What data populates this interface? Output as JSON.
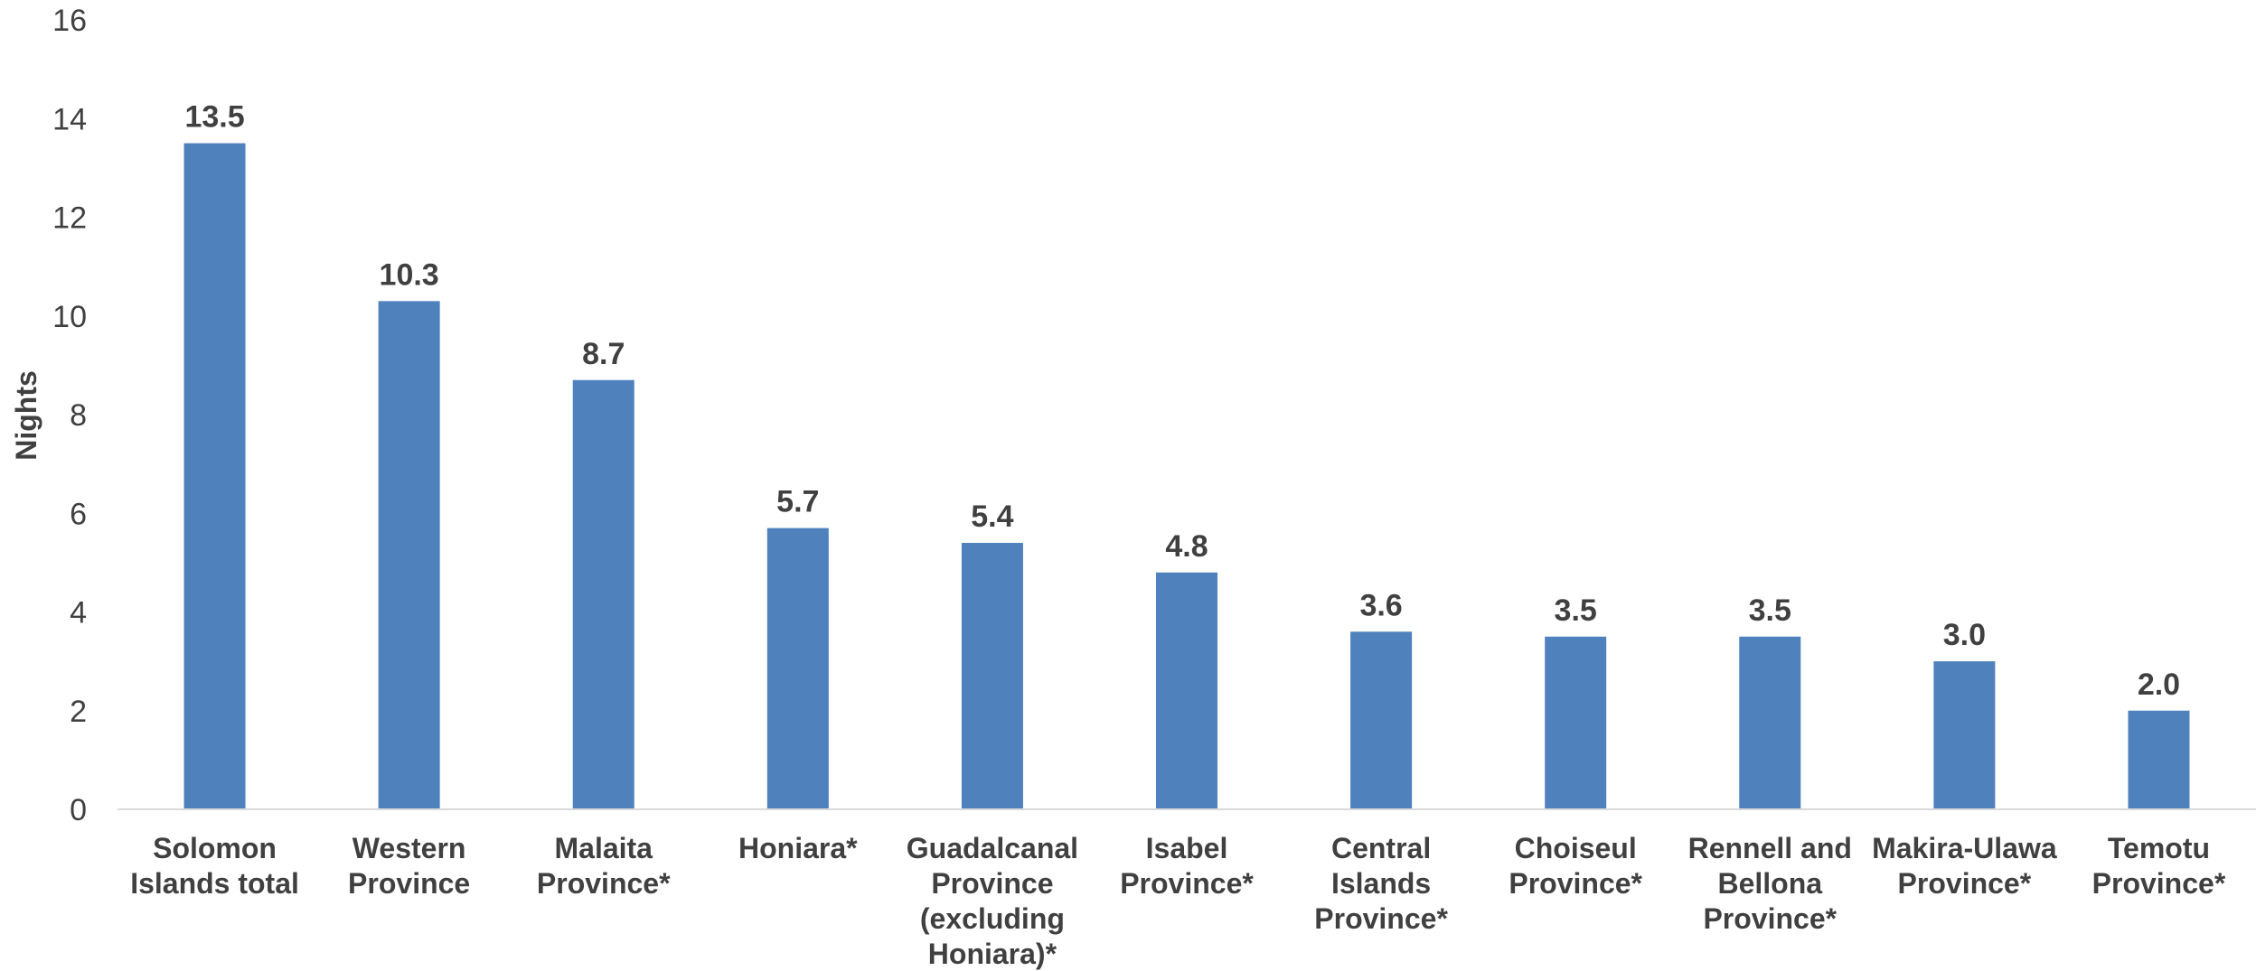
{
  "chart_data": {
    "type": "bar",
    "title": "",
    "xlabel": "",
    "ylabel": "Nights",
    "ylim": [
      0,
      16
    ],
    "yticks": [
      0,
      2,
      4,
      6,
      8,
      10,
      12,
      14,
      16
    ],
    "grid": false,
    "legend": "none",
    "bar_color": "#4f81bd",
    "categories": [
      [
        "Solomon",
        "Islands total"
      ],
      [
        "Western",
        "Province"
      ],
      [
        "Malaita",
        "Province*"
      ],
      [
        "Honiara*"
      ],
      [
        "Guadalcanal",
        "Province",
        "(excluding",
        "Honiara)*"
      ],
      [
        "Isabel",
        "Province*"
      ],
      [
        "Central",
        "Islands",
        "Province*"
      ],
      [
        "Choiseul",
        "Province*"
      ],
      [
        "Rennell and",
        "Bellona",
        "Province*"
      ],
      [
        "Makira-Ulawa",
        "Province*"
      ],
      [
        "Temotu",
        "Province*"
      ]
    ],
    "values": [
      13.5,
      10.3,
      8.7,
      5.7,
      5.4,
      4.8,
      3.6,
      3.5,
      3.5,
      3.0,
      2.0
    ],
    "value_labels": [
      "13.5",
      "10.3",
      "8.7",
      "5.7",
      "5.4",
      "4.8",
      "3.6",
      "3.5",
      "3.5",
      "3.0",
      "2.0"
    ]
  }
}
